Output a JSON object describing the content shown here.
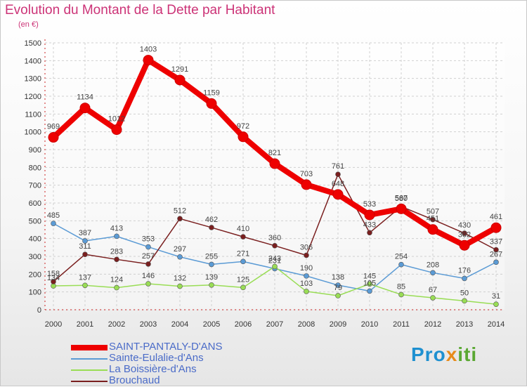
{
  "title": "Evolution du Montant de la Dette par Habitant",
  "unit": "(en €)",
  "logo": {
    "text": [
      "Pro",
      "x",
      "iti"
    ]
  },
  "chart_data": {
    "type": "line",
    "x": [
      2000,
      2001,
      2002,
      2003,
      2004,
      2005,
      2006,
      2007,
      2008,
      2009,
      2010,
      2011,
      2012,
      2013,
      2014
    ],
    "ylim": [
      0,
      1500
    ],
    "yticks": [
      0,
      100,
      200,
      300,
      400,
      500,
      600,
      700,
      800,
      900,
      1000,
      1100,
      1200,
      1300,
      1400,
      1500
    ],
    "grid": true,
    "legend_position": "bottom-left",
    "series": [
      {
        "name": "SAINT-PANTALY-D'ANS",
        "color": "#ee0000",
        "width": 8,
        "values": [
          969,
          1134,
          1012,
          1403,
          1291,
          1159,
          972,
          821,
          703,
          648,
          533,
          567,
          451,
          362,
          461
        ]
      },
      {
        "name": "Sainte-Eulalie-d'Ans",
        "color": "#5b9bd5",
        "width": 1.5,
        "values": [
          485,
          387,
          413,
          353,
          297,
          255,
          271,
          231,
          190,
          138,
          105,
          254,
          208,
          176,
          267
        ]
      },
      {
        "name": "La Boissière-d'Ans",
        "color": "#99dd55",
        "width": 1.5,
        "values": [
          134,
          137,
          124,
          146,
          132,
          139,
          125,
          243,
          103,
          79,
          145,
          85,
          67,
          50,
          31
        ]
      },
      {
        "name": "Brouchaud",
        "color": "#7a1f1f",
        "width": 1.5,
        "values": [
          158,
          311,
          283,
          257,
          512,
          462,
          410,
          360,
          306,
          761,
          433,
          580,
          507,
          430,
          337
        ]
      }
    ]
  }
}
